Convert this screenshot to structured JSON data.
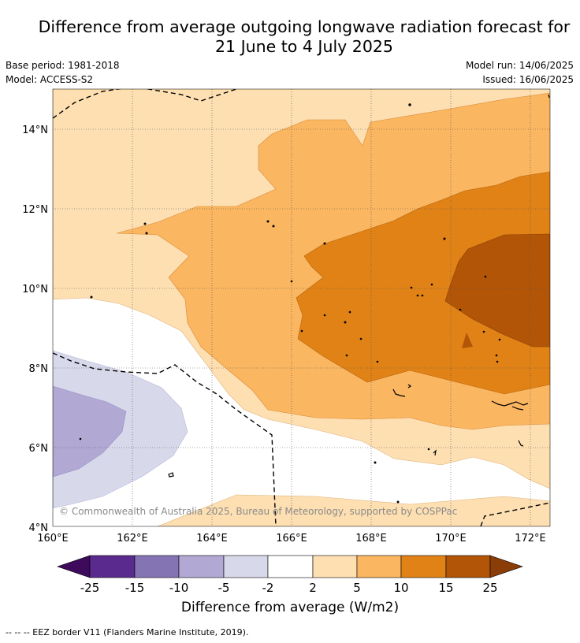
{
  "title_line1": "Difference from average outgoing longwave radiation forecast for",
  "title_line2": "21 June to 4 July 2025",
  "base_period": "Base period: 1981-2018",
  "model": "Model: ACCESS-S2",
  "model_run": "Model run: 14/06/2025",
  "issued": "Issued: 16/06/2025",
  "copyright": "© Commonwealth of Australia 2025, Bureau of Meteorology, supported by COSPPac",
  "x_ticks": [
    "160°E",
    "162°E",
    "164°E",
    "166°E",
    "168°E",
    "170°E",
    "172°E"
  ],
  "y_ticks": [
    "14°N",
    "12°N",
    "10°N",
    "8°N",
    "6°N",
    "4°N"
  ],
  "colorbar": {
    "label": "Difference from average (W/m2)",
    "ticks": [
      "-25",
      "-15",
      "-10",
      "-5",
      "-2",
      "2",
      "5",
      "10",
      "15",
      "25"
    ],
    "colors": {
      "under": "#3d0a5c",
      "c1": "#5b2a8e",
      "c2": "#8574b4",
      "c3": "#b1a8d3",
      "c4": "#d8d8eb",
      "c5": "#ffffff",
      "c6": "#fddfb2",
      "c7": "#fab660",
      "c8": "#e08216",
      "c9": "#b25507",
      "over": "#8a3d06"
    }
  },
  "legend_footer": "-- -- -- EEZ border V11 (Flanders Marine Institute, 2019)."
}
